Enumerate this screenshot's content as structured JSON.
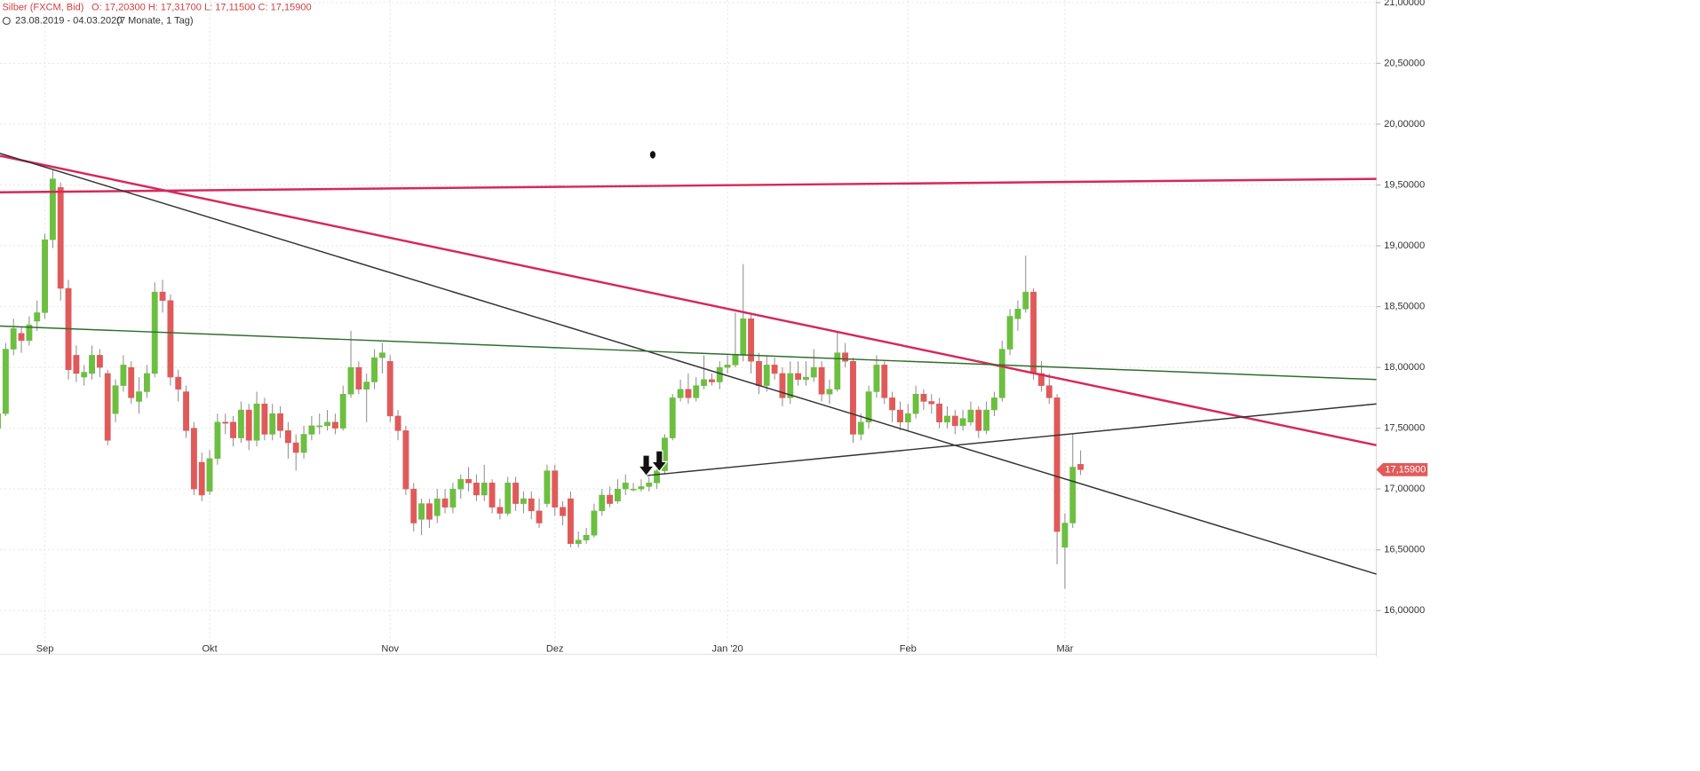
{
  "chart_data": {
    "type": "candlestick",
    "title": "Silber (FXCM, Bid)",
    "ohlc_text": "O: 17,20300  H: 17,31700  L: 17,11500  C: 17,15900",
    "subtitle": "23.08.2019 - 04.03.2020",
    "period": "(7 Monate, 1 Tag)",
    "up_color": "#6cbf40",
    "down_color": "#e05a5a",
    "grid": true,
    "ylim": [
      15.64,
      21.02
    ],
    "yticks": [
      {
        "value": 16,
        "label": "16,00000"
      },
      {
        "value": 16.5,
        "label": "16,50000"
      },
      {
        "value": 17,
        "label": "17,00000"
      },
      {
        "value": 17.5,
        "label": "17,50000"
      },
      {
        "value": 18,
        "label": "18,00000"
      },
      {
        "value": 18.5,
        "label": "18,50000"
      },
      {
        "value": 19,
        "label": "19,00000"
      },
      {
        "value": 19.5,
        "label": "19,50000"
      },
      {
        "value": 20,
        "label": "20,00000"
      },
      {
        "value": 20.5,
        "label": "20,50000"
      },
      {
        "value": 21,
        "label": "21,00000"
      }
    ],
    "last_price": {
      "value": 17.159,
      "label": "17,15900"
    },
    "categories": [
      null,
      null,
      null,
      null,
      null,
      null,
      "Sep",
      null,
      null,
      null,
      null,
      null,
      null,
      null,
      null,
      null,
      null,
      null,
      null,
      null,
      null,
      null,
      null,
      null,
      null,
      null,
      null,
      "Okt",
      null,
      null,
      null,
      null,
      null,
      null,
      null,
      null,
      null,
      null,
      null,
      null,
      null,
      null,
      null,
      null,
      null,
      null,
      null,
      null,
      null,
      null,
      "Nov",
      null,
      null,
      null,
      null,
      null,
      null,
      null,
      null,
      null,
      null,
      null,
      null,
      null,
      null,
      null,
      null,
      null,
      null,
      null,
      null,
      "Dez",
      null,
      null,
      null,
      null,
      null,
      null,
      null,
      null,
      null,
      null,
      null,
      null,
      null,
      null,
      null,
      null,
      null,
      null,
      null,
      null,
      null,
      "Jan '20",
      null,
      null,
      null,
      null,
      null,
      null,
      null,
      null,
      null,
      null,
      null,
      null,
      null,
      null,
      null,
      null,
      null,
      null,
      null,
      null,
      null,
      null,
      "Feb",
      null,
      null,
      null,
      null,
      null,
      null,
      null,
      null,
      null,
      null,
      null,
      null,
      null,
      null,
      null,
      null,
      null,
      null,
      null,
      "Mär",
      null,
      null
    ],
    "open": [
      17.5,
      17.62,
      18.15,
      18.28,
      18.22,
      18.38,
      18.45,
      19.05,
      19.48,
      18.65,
      18.1,
      17.92,
      17.95,
      18.1,
      17.95,
      17.62,
      17.85,
      18.0,
      17.72,
      17.8,
      17.95,
      18.62,
      18.55,
      17.92,
      17.8,
      17.5,
      17.22,
      16.98,
      17.25,
      17.55,
      17.55,
      17.42,
      17.65,
      17.4,
      17.7,
      17.45,
      17.62,
      17.48,
      17.38,
      17.3,
      17.45,
      17.52,
      17.52,
      17.55,
      17.5,
      17.78,
      18.0,
      17.82,
      17.88,
      18.08,
      18.05,
      17.6,
      17.48,
      17.0,
      16.75,
      16.88,
      16.78,
      16.92,
      16.85,
      17.0,
      17.08,
      17.05,
      16.95,
      17.05,
      16.85,
      16.8,
      17.05,
      16.88,
      16.92,
      16.82,
      16.88,
      17.15,
      16.85,
      16.92,
      16.55,
      16.58,
      16.62,
      16.82,
      16.95,
      16.9,
      17.0,
      17.0,
      17.0,
      17.02,
      17.05,
      17.15,
      17.42,
      17.75,
      17.82,
      17.75,
      17.85,
      17.9,
      17.88,
      18.0,
      18.02,
      18.1,
      18.4,
      18.05,
      17.85,
      18.02,
      17.95,
      17.75,
      17.95,
      17.9,
      17.92,
      18.0,
      17.78,
      17.82,
      18.12,
      18.05,
      17.45,
      17.55,
      17.8,
      18.02,
      17.75,
      17.65,
      17.55,
      17.62,
      17.78,
      17.72,
      17.7,
      17.55,
      17.6,
      17.52,
      17.55,
      17.65,
      17.48,
      17.65,
      17.75,
      18.15,
      18.4,
      18.48,
      18.62,
      17.95,
      17.85,
      17.75,
      16.52,
      16.72,
      17.203
    ],
    "high": [
      17.68,
      18.2,
      18.4,
      18.33,
      18.42,
      18.55,
      19.1,
      19.62,
      19.52,
      18.72,
      18.18,
      18.02,
      18.18,
      18.15,
      17.98,
      17.9,
      18.1,
      18.05,
      17.92,
      18.02,
      18.7,
      18.72,
      18.6,
      17.98,
      17.85,
      17.55,
      17.3,
      17.32,
      17.62,
      17.62,
      17.6,
      17.72,
      17.7,
      17.8,
      17.75,
      17.7,
      17.68,
      17.55,
      17.45,
      17.52,
      17.6,
      17.62,
      17.65,
      17.62,
      17.85,
      18.3,
      18.05,
      17.95,
      18.15,
      18.2,
      18.1,
      17.65,
      17.52,
      17.05,
      16.92,
      16.92,
      17.0,
      17.0,
      17.05,
      17.12,
      17.18,
      17.12,
      17.2,
      17.08,
      16.92,
      17.1,
      17.1,
      16.98,
      16.98,
      16.92,
      17.2,
      17.2,
      16.9,
      16.98,
      16.65,
      16.68,
      16.88,
      17.0,
      17.02,
      17.08,
      17.12,
      17.05,
      17.08,
      17.1,
      17.22,
      17.45,
      17.78,
      17.9,
      17.95,
      17.92,
      18.1,
      17.95,
      18.05,
      18.1,
      18.45,
      18.85,
      18.45,
      18.12,
      18.1,
      18.08,
      18.0,
      18.05,
      18.05,
      18.05,
      18.15,
      18.05,
      17.9,
      18.3,
      18.2,
      18.08,
      17.62,
      17.85,
      18.1,
      18.05,
      17.8,
      17.72,
      17.7,
      17.85,
      17.82,
      17.78,
      17.75,
      17.68,
      17.65,
      17.65,
      17.72,
      17.68,
      17.72,
      17.8,
      18.22,
      18.48,
      18.55,
      18.92,
      18.65,
      18.05,
      17.95,
      17.78,
      16.8,
      17.45,
      17.317
    ],
    "low": [
      17.45,
      17.6,
      18.1,
      18.12,
      18.18,
      18.3,
      18.4,
      18.98,
      18.55,
      17.9,
      17.88,
      17.85,
      17.9,
      17.92,
      17.36,
      17.55,
      17.8,
      17.7,
      17.62,
      17.75,
      17.92,
      18.45,
      17.85,
      17.72,
      17.42,
      16.95,
      16.9,
      16.95,
      17.2,
      17.45,
      17.35,
      17.38,
      17.32,
      17.35,
      17.4,
      17.4,
      17.42,
      17.25,
      17.15,
      17.25,
      17.4,
      17.45,
      17.48,
      17.45,
      17.48,
      17.75,
      17.78,
      17.55,
      17.82,
      17.95,
      17.55,
      17.4,
      16.95,
      16.65,
      16.62,
      16.68,
      16.72,
      16.8,
      16.8,
      16.92,
      16.98,
      16.9,
      16.9,
      16.8,
      16.75,
      16.78,
      16.82,
      16.8,
      16.75,
      16.68,
      16.85,
      16.78,
      16.7,
      16.52,
      16.52,
      16.55,
      16.6,
      16.78,
      16.85,
      16.88,
      16.95,
      16.98,
      16.98,
      16.98,
      17.0,
      17.12,
      17.4,
      17.72,
      17.7,
      17.72,
      17.82,
      17.85,
      17.82,
      17.95,
      18.0,
      18.05,
      17.95,
      17.78,
      17.8,
      17.9,
      17.68,
      17.7,
      17.85,
      17.85,
      17.88,
      17.72,
      17.7,
      17.8,
      18.0,
      17.38,
      17.4,
      17.5,
      17.75,
      17.7,
      17.55,
      17.48,
      17.48,
      17.58,
      17.65,
      17.62,
      17.5,
      17.5,
      17.45,
      17.48,
      17.52,
      17.42,
      17.45,
      17.6,
      17.72,
      18.1,
      18.3,
      18.45,
      17.9,
      17.8,
      17.7,
      16.38,
      16.18,
      16.68,
      17.115
    ],
    "close": [
      17.62,
      18.15,
      18.32,
      18.22,
      18.35,
      18.45,
      19.05,
      19.55,
      18.65,
      17.98,
      17.95,
      17.96,
      18.1,
      18.0,
      17.4,
      17.85,
      18.02,
      17.75,
      17.8,
      17.95,
      18.62,
      18.55,
      17.92,
      17.82,
      17.48,
      17.0,
      16.95,
      17.25,
      17.55,
      17.54,
      17.42,
      17.65,
      17.4,
      17.7,
      17.45,
      17.62,
      17.48,
      17.38,
      17.3,
      17.45,
      17.52,
      17.52,
      17.55,
      17.5,
      17.78,
      18.0,
      17.82,
      17.88,
      18.08,
      18.12,
      17.6,
      17.48,
      17.0,
      16.72,
      16.88,
      16.75,
      16.92,
      16.85,
      17.0,
      17.08,
      17.05,
      16.95,
      17.05,
      16.85,
      16.8,
      17.05,
      16.88,
      16.92,
      16.82,
      16.72,
      17.15,
      16.85,
      16.78,
      16.55,
      16.58,
      16.62,
      16.82,
      16.95,
      16.88,
      17.0,
      17.05,
      17.0,
      17.02,
      17.05,
      17.15,
      17.42,
      17.75,
      17.82,
      17.75,
      17.85,
      17.9,
      17.88,
      18.0,
      18.02,
      18.1,
      18.4,
      18.05,
      17.85,
      18.02,
      17.95,
      17.75,
      17.95,
      17.9,
      17.92,
      18.0,
      17.78,
      17.82,
      18.12,
      18.05,
      17.45,
      17.55,
      17.8,
      18.02,
      17.75,
      17.65,
      17.55,
      17.62,
      17.78,
      17.72,
      17.7,
      17.55,
      17.6,
      17.52,
      17.58,
      17.65,
      17.48,
      17.65,
      17.75,
      18.15,
      18.42,
      18.48,
      18.62,
      17.95,
      17.85,
      17.75,
      16.65,
      16.72,
      17.18,
      17.159
    ],
    "trendlines": [
      {
        "color": "#d6285a",
        "start": [
          0.28,
          19.44
        ],
        "end": [
          175.7,
          19.55
        ]
      },
      {
        "color": "#d6285a",
        "start": [
          0.28,
          19.74
        ],
        "end": [
          175.7,
          17.36
        ]
      },
      {
        "color": "#333333",
        "start": [
          0.28,
          19.76
        ],
        "end": [
          175.7,
          16.3
        ]
      },
      {
        "color": "#2e6e2e",
        "start": [
          0.28,
          18.34
        ],
        "end": [
          175.7,
          17.9
        ]
      },
      {
        "color": "#333333",
        "start": [
          82.6,
          17.11
        ],
        "end": [
          175.7,
          17.7
        ]
      }
    ]
  }
}
